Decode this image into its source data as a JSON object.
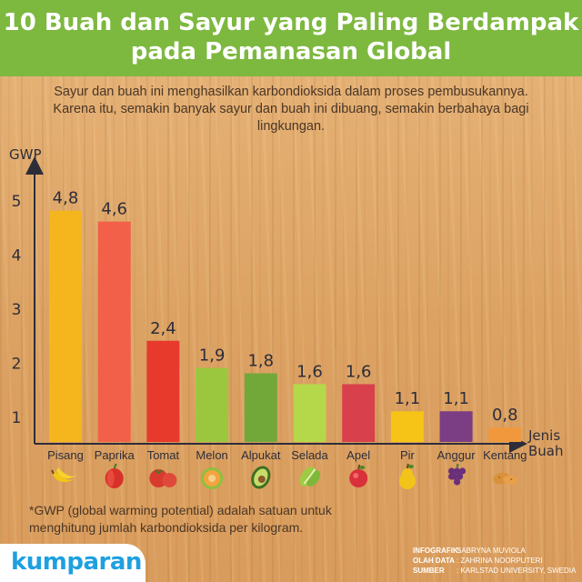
{
  "header": {
    "title_line1": "10 Buah dan Sayur yang Paling Berdampak",
    "title_line2": "pada Pemanasan Global"
  },
  "subtitle": {
    "line1": "Sayur dan buah ini menghasilkan karbondioksida dalam proses pembusukannya.",
    "line2": "Karena itu, semakin banyak sayur dan buah ini dibuang, semakin berbahaya bagi",
    "line3": "lingkungan."
  },
  "chart_data": {
    "type": "bar",
    "ylabel": "GWP",
    "xlabel_line1": "Jenis",
    "xlabel_line2": "Buah",
    "yticks": [
      "1",
      "2",
      "3",
      "4",
      "5"
    ],
    "ylim": [
      0.5,
      5.5
    ],
    "grid": false,
    "categories": [
      "Pisang",
      "Paprika",
      "Tomat",
      "Melon",
      "Alpukat",
      "Selada",
      "Apel",
      "Pir",
      "Anggur",
      "Kentang"
    ],
    "values": [
      4.8,
      4.6,
      2.4,
      1.9,
      1.8,
      1.6,
      1.6,
      1.1,
      1.1,
      0.8
    ],
    "value_labels": [
      "4,8",
      "4,6",
      "2,4",
      "1,9",
      "1,8",
      "1,6",
      "1,6",
      "1,1",
      "1,1",
      "0,8"
    ],
    "colors": [
      "#f5b51d",
      "#f2604a",
      "#e8392d",
      "#9bc73f",
      "#72a83a",
      "#b5d84a",
      "#d8414b",
      "#f6c416",
      "#7b3d84",
      "#f1983d"
    ],
    "icons": [
      "banana-icon",
      "paprika-icon",
      "tomato-icon",
      "melon-icon",
      "avocado-icon",
      "lettuce-icon",
      "apple-icon",
      "pear-icon",
      "grape-icon",
      "potato-icon"
    ]
  },
  "footnote": {
    "line1": "*GWP (global warming potential) adalah satuan untuk",
    "line2": "menghitung jumlah karbondioksida per kilogram."
  },
  "brand": {
    "logo_text": "kumparan"
  },
  "credits": {
    "infografik_label": "INFOGRAFIK:",
    "infografik_value": "SABRYNA MUVIOLA",
    "olah_data_label": "OLAH DATA",
    "olah_data_value": ": ZAHRINA NOORPUTERI",
    "sumber_label": "SUMBER",
    "sumber_value": ": KARLSTAD UNIVERSITY, SWEDIA"
  }
}
